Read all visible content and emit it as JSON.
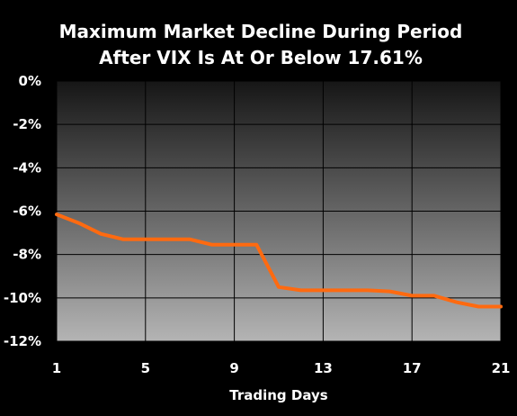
{
  "chart_data": {
    "type": "line",
    "title_lines": [
      "Maximum Market Decline During Period",
      "After VIX Is At Or Below 17.61%"
    ],
    "xlabel": "Trading Days",
    "ylabel": "",
    "x": [
      1,
      2,
      3,
      4,
      5,
      6,
      7,
      8,
      9,
      10,
      11,
      12,
      13,
      14,
      15,
      16,
      17,
      18,
      19,
      20,
      21
    ],
    "series": [
      {
        "name": "",
        "values": [
          -6.15,
          -6.55,
          -7.05,
          -7.3,
          -7.3,
          -7.3,
          -7.3,
          -7.55,
          -7.55,
          -7.55,
          -9.5,
          -9.65,
          -9.65,
          -9.65,
          -9.65,
          -9.7,
          -9.9,
          -9.9,
          -10.2,
          -10.4,
          -10.4
        ]
      }
    ],
    "xlim": [
      1,
      21
    ],
    "ylim": [
      -12,
      0
    ],
    "x_ticks": [
      1,
      5,
      9,
      13,
      17,
      21
    ],
    "x_tick_labels": [
      "1",
      "5",
      "9",
      "13",
      "17",
      "21"
    ],
    "y_ticks": [
      0,
      -2,
      -4,
      -6,
      -8,
      -10,
      -12
    ],
    "y_tick_labels": [
      "0%",
      "-2%",
      "-4%",
      "-6%",
      "-8%",
      "-10%",
      "-12%"
    ],
    "grid": true,
    "legend": "none",
    "colors": {
      "line": "#ff6a10",
      "plot_bg_top": "#161616",
      "plot_bg_bottom": "#b4b4b4",
      "grid": "#000000",
      "text": "#ffffff",
      "page_bg": "#000000"
    }
  }
}
